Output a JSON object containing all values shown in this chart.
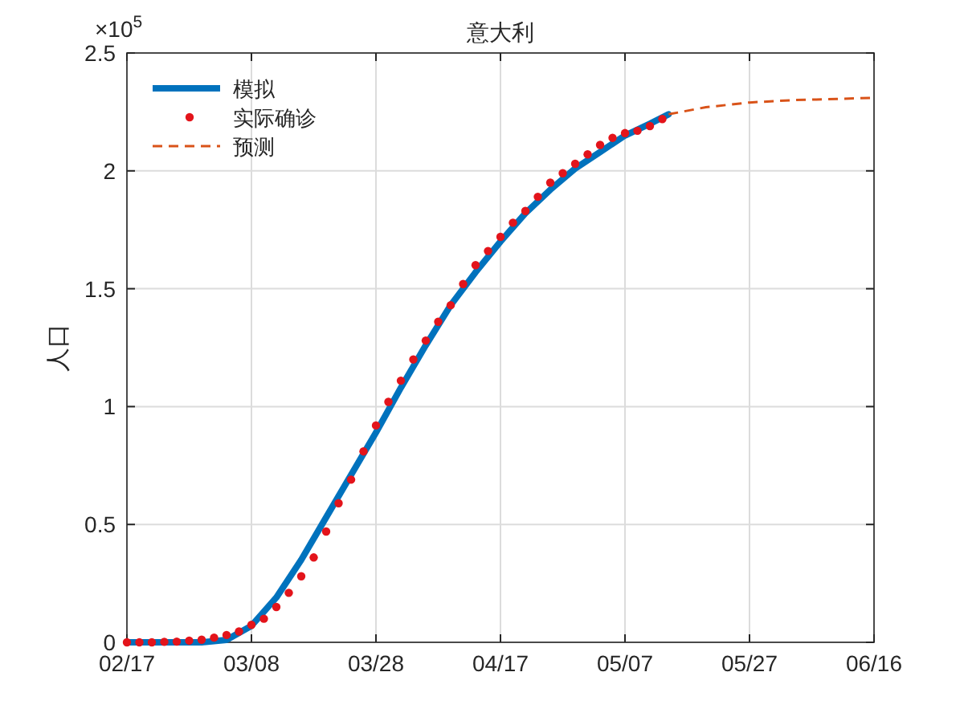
{
  "chart_data": {
    "type": "line",
    "title": "意大利",
    "ylabel": "人口",
    "annotations": [
      "×10$^{5}$"
    ],
    "xlim": [
      "--02-17",
      "--06-16"
    ],
    "xticks": [
      {
        "value": "--02-17",
        "label": "02/17"
      },
      {
        "value": "--03-08",
        "label": "03/08"
      },
      {
        "value": "--03-28",
        "label": "03/28"
      },
      {
        "value": "--04-17",
        "label": "04/17"
      },
      {
        "value": "--05-07",
        "label": "05/07"
      },
      {
        "value": "--05-27",
        "label": "05/27"
      },
      {
        "value": "--06-16",
        "label": "06/16"
      }
    ],
    "ylim": [
      0,
      2.5
    ],
    "yticks": [
      0,
      0.5,
      1,
      1.5,
      2,
      2.5
    ],
    "grid": true,
    "legend": "top left",
    "series": [
      {
        "name": "模拟",
        "color": "#0072bd",
        "line_style": "solid",
        "marker": "none",
        "x": [
          "--02-17",
          "--02-25",
          "--02-29",
          "--03-04",
          "--03-08",
          "--03-12",
          "--03-16",
          "--03-20",
          "--03-24",
          "--03-28",
          "--04-01",
          "--04-05",
          "--04-09",
          "--04-13",
          "--04-17",
          "--04-21",
          "--04-25",
          "--04-29",
          "--05-03",
          "--05-07",
          "--05-11",
          "--05-14"
        ],
        "values": [
          0,
          0,
          0,
          0.01,
          0.07,
          0.19,
          0.35,
          0.53,
          0.71,
          0.89,
          1.08,
          1.26,
          1.43,
          1.57,
          1.7,
          1.82,
          1.92,
          2.01,
          2.08,
          2.15,
          2.2,
          2.24
        ]
      },
      {
        "name": "实际确诊",
        "type": "scatter",
        "color": "#e3141b",
        "marker": "circle",
        "x": [
          "--02-17",
          "--02-19",
          "--02-21",
          "--02-23",
          "--02-25",
          "--02-27",
          "--02-29",
          "--03-02",
          "--03-04",
          "--03-06",
          "--03-08",
          "--03-10",
          "--03-12",
          "--03-14",
          "--03-16",
          "--03-18",
          "--03-20",
          "--03-22",
          "--03-24",
          "--03-26",
          "--03-28",
          "--03-30",
          "--04-01",
          "--04-03",
          "--04-05",
          "--04-07",
          "--04-09",
          "--04-11",
          "--04-13",
          "--04-15",
          "--04-17",
          "--04-19",
          "--04-21",
          "--04-23",
          "--04-25",
          "--04-27",
          "--04-29",
          "--05-01",
          "--05-03",
          "--05-05",
          "--05-07",
          "--05-09",
          "--05-11",
          "--05-13"
        ],
        "values": [
          0,
          0,
          0,
          0.002,
          0.003,
          0.007,
          0.011,
          0.02,
          0.031,
          0.046,
          0.074,
          0.1,
          0.15,
          0.21,
          0.28,
          0.36,
          0.47,
          0.59,
          0.69,
          0.81,
          0.92,
          1.02,
          1.11,
          1.2,
          1.28,
          1.36,
          1.43,
          1.52,
          1.6,
          1.66,
          1.72,
          1.78,
          1.83,
          1.89,
          1.95,
          1.99,
          2.03,
          2.07,
          2.11,
          2.14,
          2.16,
          2.17,
          2.19,
          2.22
        ]
      },
      {
        "name": "预测",
        "color": "#d95319",
        "line_style": "dashed",
        "marker": "none",
        "x": [
          "--05-14",
          "--05-20",
          "--05-27",
          "--06-03",
          "--06-10",
          "--06-16"
        ],
        "values": [
          2.24,
          2.27,
          2.29,
          2.3,
          2.305,
          2.31
        ]
      }
    ]
  }
}
